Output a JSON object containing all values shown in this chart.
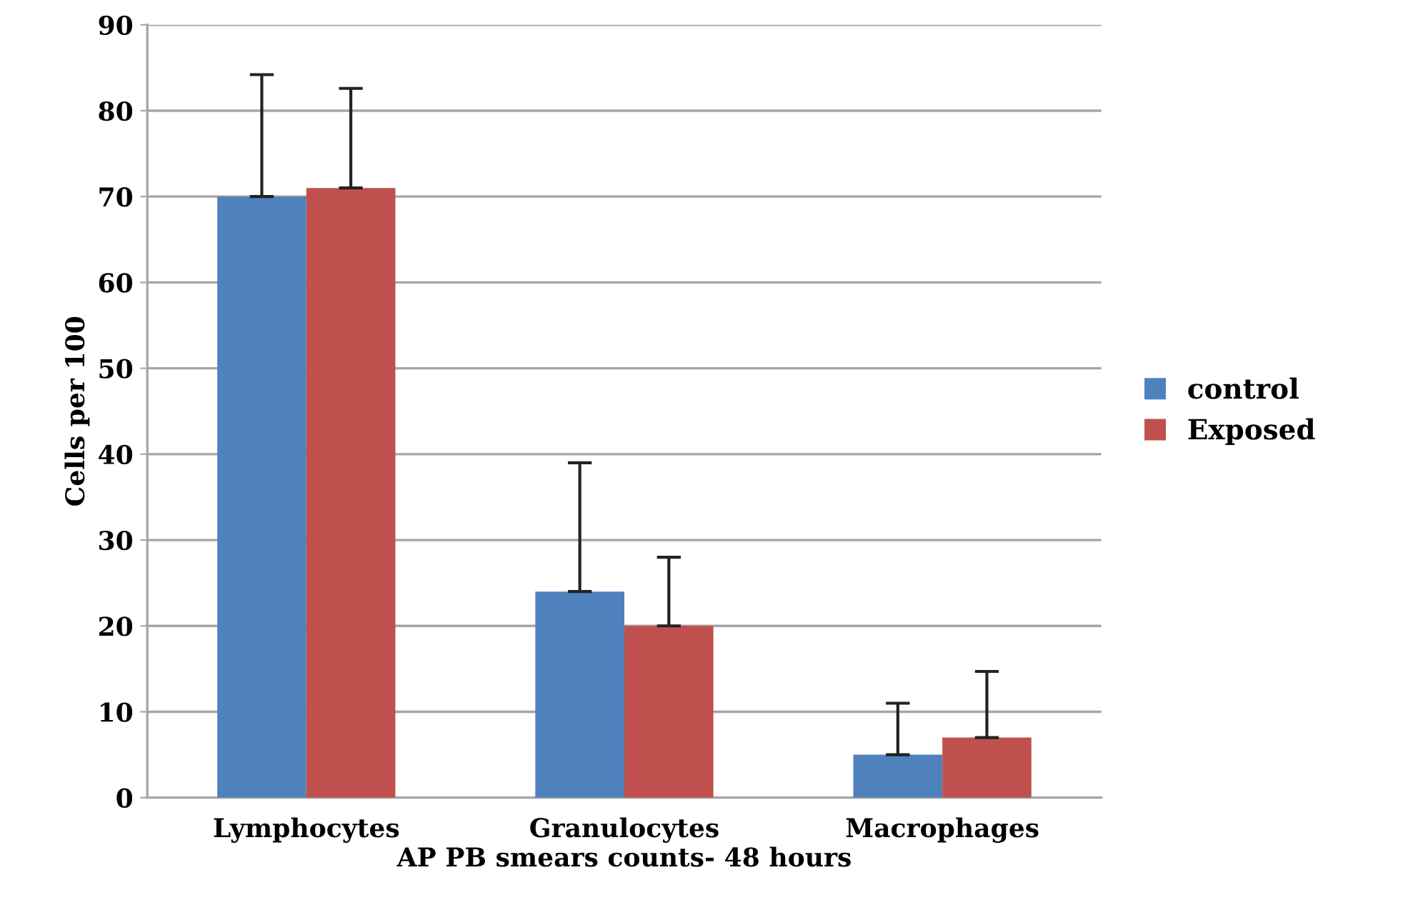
{
  "chart_data": {
    "type": "bar",
    "xlabel": "AP PB smears counts- 48 hours",
    "ylabel": "Cells per 100",
    "categories": [
      "Lymphocytes",
      "Granulocytes",
      "Macrophages"
    ],
    "series": [
      {
        "name": "control",
        "color": "#4f81bd",
        "values": [
          70,
          24,
          5
        ],
        "errors": [
          [
            70,
            84.2
          ],
          [
            24,
            39
          ],
          [
            5,
            11
          ]
        ]
      },
      {
        "name": "Exposed",
        "color": "#c0504d",
        "values": [
          71,
          20,
          7
        ],
        "errors": [
          [
            71,
            82.6
          ],
          [
            20,
            28
          ],
          [
            7,
            14.7
          ]
        ]
      }
    ],
    "ylim": [
      0,
      90
    ],
    "yticks": [
      0,
      10,
      20,
      30,
      40,
      50,
      60,
      70,
      80,
      90
    ],
    "grid": "y",
    "legend": "right"
  }
}
